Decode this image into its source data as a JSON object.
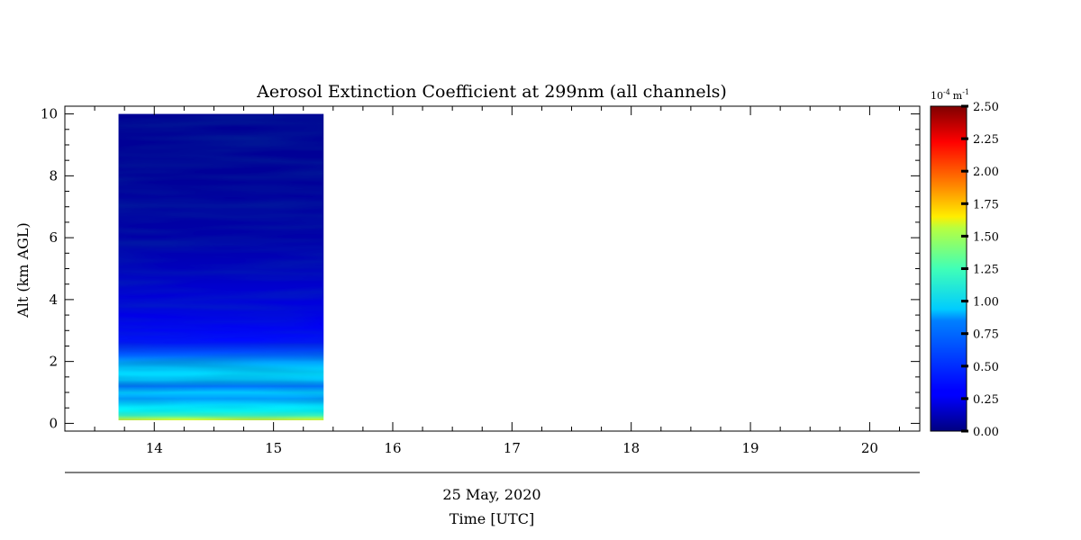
{
  "chart_data": {
    "type": "heatmap",
    "title": "Aerosol Extinction Coefficient at 299nm (all channels)",
    "ylabel": "Alt (km AGL)",
    "xlabel": "Time [UTC]",
    "date_label": "25 May, 2020",
    "x_ticks": [
      "14",
      "15",
      "16",
      "17",
      "18",
      "19",
      "20"
    ],
    "x_tick_values": [
      14,
      15,
      16,
      17,
      18,
      19,
      20
    ],
    "xlim": [
      13.25,
      20.42
    ],
    "y_ticks": [
      "0",
      "2",
      "4",
      "6",
      "8",
      "10"
    ],
    "y_tick_values": [
      0,
      2,
      4,
      6,
      8,
      10
    ],
    "ylim": [
      -0.25,
      10.25
    ],
    "data_extent": {
      "x": [
        13.7,
        15.42
      ],
      "y": [
        0.1,
        10.0
      ]
    },
    "profile": {
      "altitudes": [
        0.1,
        0.25,
        0.4,
        0.6,
        0.8,
        1.0,
        1.2,
        1.4,
        1.6,
        1.8,
        2.0,
        2.2,
        2.4,
        2.6,
        3.0,
        3.5,
        4.0,
        5.0,
        6.0,
        8.0,
        10.0
      ],
      "values": [
        1.5,
        1.1,
        0.95,
        0.85,
        0.7,
        0.8,
        0.6,
        0.8,
        0.85,
        0.8,
        0.7,
        0.55,
        0.45,
        0.35,
        0.3,
        0.25,
        0.22,
        0.15,
        0.1,
        0.06,
        0.05
      ]
    },
    "colorbar": {
      "unit_base": "10",
      "unit_exp": "-4",
      "unit_m": "m",
      "unit_m_exp": "-1",
      "min": 0.0,
      "max": 2.5,
      "tick_labels": [
        "0.00",
        "0.25",
        "0.50",
        "0.75",
        "1.00",
        "1.25",
        "1.50",
        "1.75",
        "2.00",
        "2.25",
        "2.50"
      ],
      "colormap": "jet"
    }
  }
}
